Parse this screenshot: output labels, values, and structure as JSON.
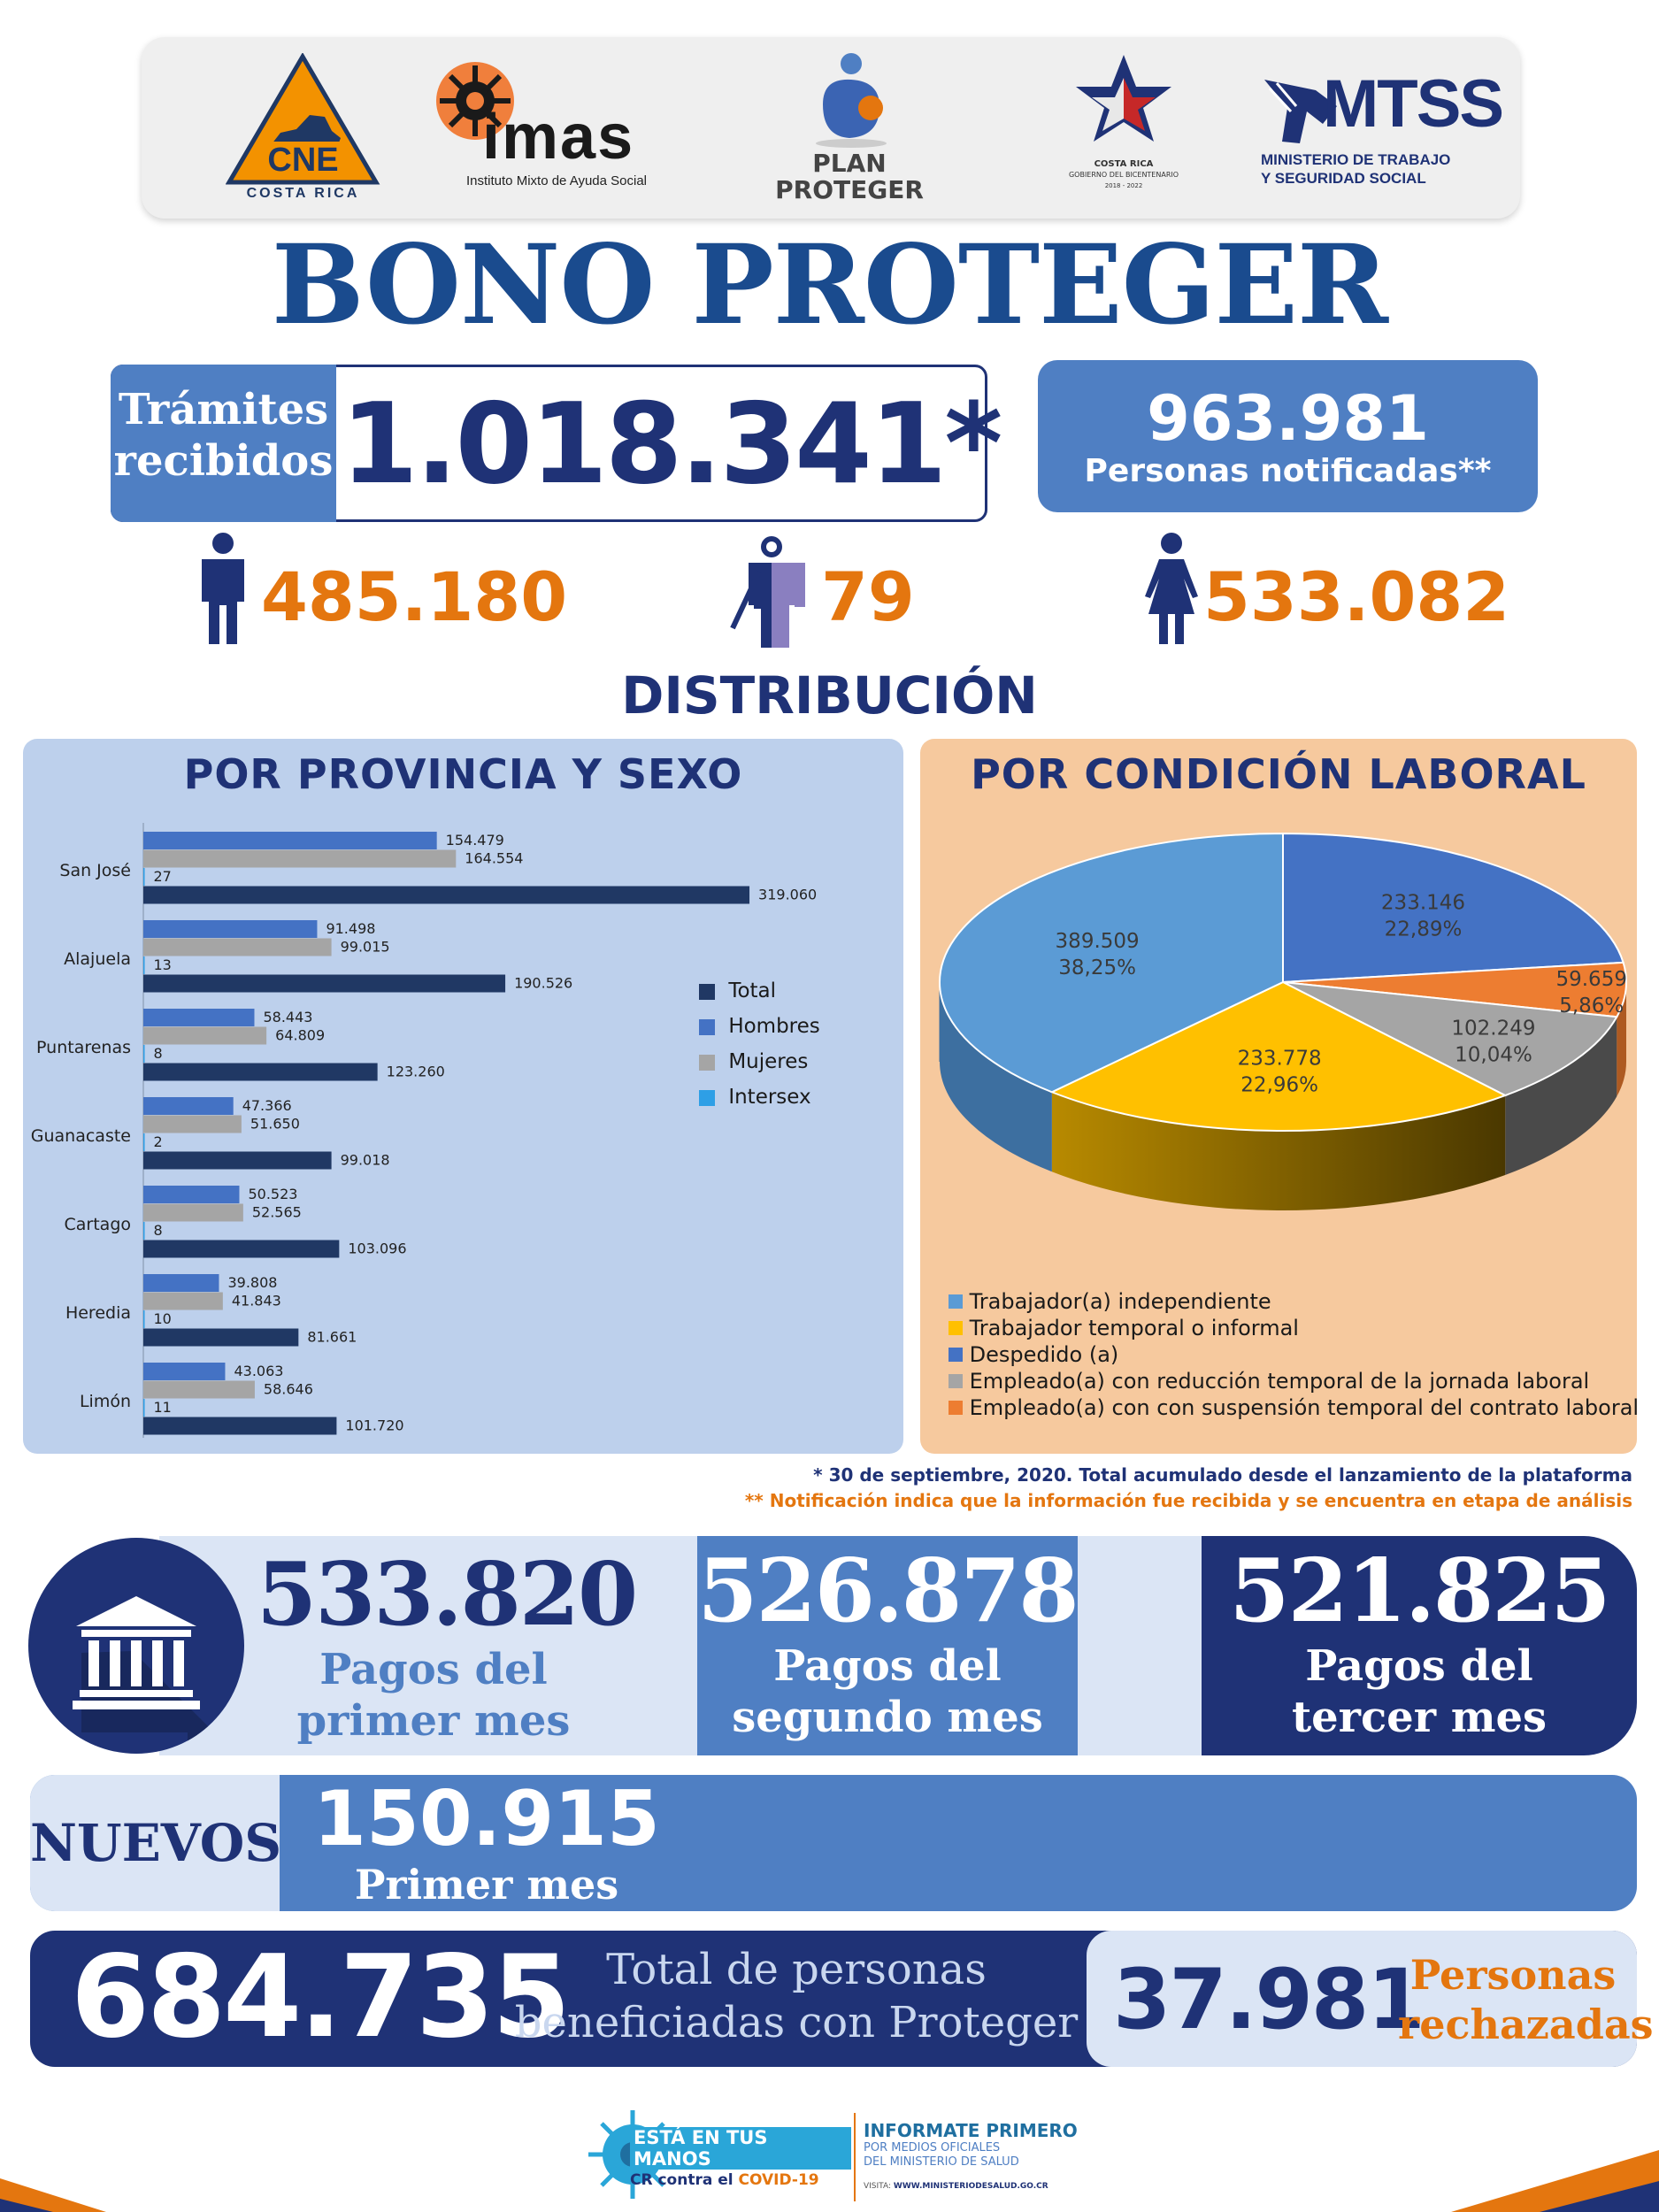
{
  "logos": {
    "cne": {
      "name": "CNE",
      "caption": "COSTA RICA"
    },
    "imas": {
      "name": "imas",
      "caption": "Instituto Mixto de Ayuda Social"
    },
    "plan": {
      "line1": "PLAN",
      "line2": "PROTEGER"
    },
    "gobierno": {
      "line1": "COSTA RICA",
      "line2": "GOBIERNO DEL BICENTENARIO",
      "line3": "2018 - 2022"
    },
    "mtss": {
      "name": "MTSS",
      "line1": "MINISTERIO DE TRABAJO",
      "line2": "Y SEGURIDAD SOCIAL"
    }
  },
  "title": "BONO PROTEGER",
  "tramites": {
    "label_line1": "Trámites",
    "label_line2": "recibidos",
    "value": "1.018.341*"
  },
  "notificadas": {
    "value": "963.981",
    "label": "Personas notificadas**"
  },
  "sex_stats": {
    "hombres": "485.180",
    "intersex": "79",
    "mujeres": "533.082"
  },
  "distribucion_title": "DISTRIBUCIÓN",
  "provincia_panel": {
    "title": "POR PROVINCIA Y SEXO"
  },
  "condicion_panel": {
    "title": "POR CONDICIÓN LABORAL"
  },
  "colors": {
    "total": "#203864",
    "hombres": "#4472c4",
    "mujeres": "#a5a5a5",
    "intersex": "#2e9fe6",
    "trabajador_independiente": "#5b9bd5",
    "trabajador_temporal": "#ffc000",
    "despedido": "#4472c4",
    "reduccion": "#a5a5a5",
    "suspension": "#ed7d31"
  },
  "chart_data": [
    {
      "type": "bar",
      "orientation": "horizontal",
      "categories": [
        "San José",
        "Alajuela",
        "Puntarenas",
        "Guanacaste",
        "Cartago",
        "Heredia",
        "Limón"
      ],
      "series": [
        {
          "name": "Hombres",
          "values": [
            154479,
            91498,
            58443,
            47366,
            50523,
            39808,
            43063
          ],
          "labels": [
            "154.479",
            "91.498",
            "58.443",
            "47.366",
            "50.523",
            "39.808",
            "43.063"
          ]
        },
        {
          "name": "Mujeres",
          "values": [
            164554,
            99015,
            64809,
            51650,
            52565,
            41843,
            58646
          ],
          "labels": [
            "164.554",
            "99.015",
            "64.809",
            "51.650",
            "52.565",
            "41.843",
            "58.646"
          ]
        },
        {
          "name": "Intersex",
          "values": [
            27,
            13,
            8,
            2,
            8,
            10,
            11
          ],
          "labels": [
            "27",
            "13",
            "8",
            "2",
            "8",
            "10",
            "11"
          ]
        },
        {
          "name": "Total",
          "values": [
            319060,
            190526,
            123260,
            99018,
            103096,
            81661,
            101720
          ],
          "labels": [
            "319.060",
            "190.526",
            "123.260",
            "99.018",
            "103.096",
            "81.661",
            "101.720"
          ]
        }
      ],
      "legend": [
        "Total",
        "Hombres",
        "Mujeres",
        "Intersex"
      ],
      "xlim": [
        0,
        340000
      ]
    },
    {
      "type": "pie",
      "slices": [
        {
          "name": "Despedido (a)",
          "value": 233146,
          "label": "233.146",
          "pct": "22,89%"
        },
        {
          "name": "Empleado(a) con con suspensión temporal del contrato laboral",
          "value": 59659,
          "label": "59.659",
          "pct": "5,86%"
        },
        {
          "name": "Empleado(a) con reducción temporal de la jornada laboral",
          "value": 102249,
          "label": "102.249",
          "pct": "10,04%"
        },
        {
          "name": "Trabajador temporal o informal",
          "value": 233778,
          "label": "233.778",
          "pct": "22,96%"
        },
        {
          "name": "Trabajador(a) independiente",
          "value": 389509,
          "label": "389.509",
          "pct": "38,25%"
        }
      ],
      "legend": [
        "Trabajador(a) independiente",
        "Trabajador temporal o informal",
        "Despedido (a)",
        "Empleado(a) con reducción temporal de la jornada laboral",
        "Empleado(a) con con suspensión temporal del contrato laboral"
      ]
    }
  ],
  "footnotes": {
    "note1": "* 30 de septiembre, 2020. Total acumulado desde el lanzamiento de la plataforma",
    "note2": "** Notificación indica que la información fue recibida y se encuentra en etapa de análisis"
  },
  "pagos": {
    "primer": {
      "value": "533.820",
      "line1": "Pagos del",
      "line2": "primer mes"
    },
    "segundo": {
      "value": "526.878",
      "line1": "Pagos del",
      "line2": "segundo mes"
    },
    "tercer": {
      "value": "521.825",
      "line1": "Pagos del",
      "line2": "tercer mes"
    }
  },
  "nuevos": {
    "label": "NUEVOS",
    "value": "150.915",
    "sub": "Primer mes"
  },
  "total_beneficiadas": {
    "value": "684.735",
    "line1": "Total de personas",
    "line2": "beneficiadas con Proteger"
  },
  "rechazadas": {
    "value": "37.981",
    "line1": "Personas",
    "line2": "rechazadas"
  },
  "footer": {
    "campaign_line1": "ESTÁ EN TUS MANOS",
    "campaign_line2a": "CR contra el",
    "campaign_line2b": "COVID-19",
    "info_title": "INFORMATE PRIMERO",
    "info_line1": "POR MEDIOS OFICIALES",
    "info_line2": "DEL MINISTERIO DE SALUD",
    "visit_label": "VISITA:",
    "visit_url": "WWW.MINISTERIODESALUD.GO.CR"
  }
}
